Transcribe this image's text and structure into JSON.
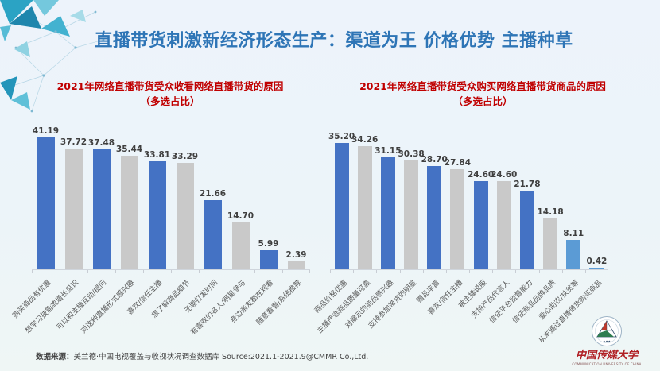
{
  "slide": {
    "title": "直播带货刺激新经济形态生产：渠道为王 价格优势 主播种草",
    "source_label": "数据来源：",
    "source_text": "美兰德·中国电视覆盖与收视状况调查数据库 Source:2021.1-2021.9@CMMR Co.,Ltd.",
    "colors": {
      "title_blue": "#2e75b6",
      "chart_title_red": "#c00000",
      "bar_blue": "#4472c4",
      "bar_gray": "#c9c9c9",
      "bar_light_blue": "#5b9bd5",
      "background": "#edf3fb"
    }
  },
  "logo": {
    "name": "中国传媒大学",
    "caption": "COMMUNICATION UNIVERSITY OF CHINA"
  },
  "chart_data": [
    {
      "type": "bar",
      "title": "2021年网络直播带货受众收看网络直播带货的原因",
      "subtitle": "（多选占比）",
      "categories": [
        "购买商品有优惠",
        "想学习技能或增长见识",
        "可以和主播互动/提问",
        "对这种直播形式感兴趣",
        "喜欢/信任主播",
        "想了解商品细节",
        "无聊打发时间",
        "有喜欢的名人/明星参与",
        "身边亲友都在观看",
        "随意看看/系统推荐"
      ],
      "values": [
        41.19,
        37.72,
        37.48,
        35.44,
        33.81,
        33.29,
        21.66,
        14.7,
        5.99,
        2.39
      ],
      "value_labels": [
        "41.19",
        "37.72",
        "37.48",
        "35.44",
        "33.81",
        "33.29",
        "21.66",
        "14.70",
        "5.99",
        "2.39"
      ],
      "bar_colors": [
        "#4472c4",
        "#c9c9c9",
        "#4472c4",
        "#c9c9c9",
        "#4472c4",
        "#c9c9c9",
        "#4472c4",
        "#c9c9c9",
        "#4472c4",
        "#c9c9c9"
      ],
      "xlabel": "",
      "ylabel": "",
      "ylim": [
        0,
        45
      ],
      "grid": false,
      "legend": "none",
      "data_labels": "above bars"
    },
    {
      "type": "bar",
      "title": "2021年网络直播带货受众购买网络直播带货商品的原因",
      "subtitle": "（多选占比）",
      "categories": [
        "商品价格优惠",
        "主播严选商品质量可靠",
        "对展示的商品感兴趣",
        "支持参加带货的明星",
        "赠品丰富",
        "喜欢/信任主播",
        "被主播说服",
        "支持产品代言人",
        "信任平台监督能力",
        "信任商品品牌品质",
        "爱心助农/扶贫等",
        "从未通过直播带货购买商品"
      ],
      "values": [
        35.2,
        34.26,
        31.15,
        30.38,
        28.7,
        27.84,
        24.6,
        24.6,
        21.78,
        14.18,
        8.11,
        0.42
      ],
      "value_labels": [
        "35.20",
        "34.26",
        "31.15",
        "30.38",
        "28.70",
        "27.84",
        "24.60",
        "24.60",
        "21.78",
        "14.18",
        "8.11",
        "0.42"
      ],
      "bar_colors": [
        "#4472c4",
        "#c9c9c9",
        "#4472c4",
        "#c9c9c9",
        "#4472c4",
        "#c9c9c9",
        "#4472c4",
        "#c9c9c9",
        "#4472c4",
        "#c9c9c9",
        "#5b9bd5",
        "#5b9bd5"
      ],
      "xlabel": "",
      "ylabel": "",
      "ylim": [
        0,
        40
      ],
      "grid": false,
      "legend": "none",
      "data_labels": "above bars"
    }
  ]
}
